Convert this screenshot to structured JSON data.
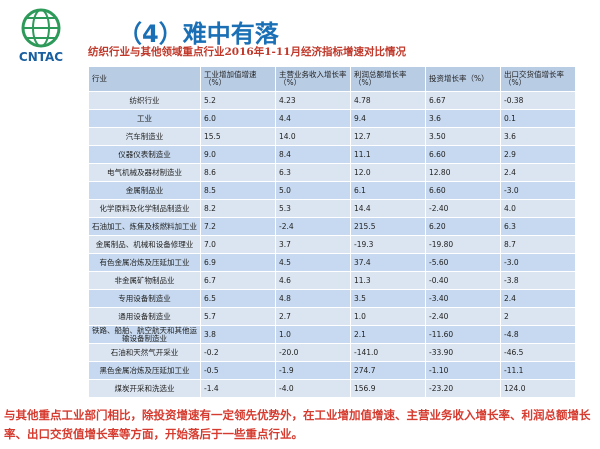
{
  "header": {
    "logo_text": "CNTAC",
    "title": "（4）难中有落"
  },
  "subtitle": "纺织行业与其他领域重点行业2016年1-11月经济指标增速对比情况",
  "table": {
    "columns": [
      "行业",
      "工业增加值增速（%）",
      "主营业务收入增长率（%）",
      "利润总额增长率（%）",
      "投资增长率（%）",
      "出口交货值增长率（%）"
    ],
    "rows": [
      [
        "纺织行业",
        "5.2",
        "4.23",
        "4.78",
        "6.67",
        "-0.38"
      ],
      [
        "工业",
        "6.0",
        "4.4",
        "9.4",
        "3.6",
        "0.1"
      ],
      [
        "汽车制造业",
        "15.5",
        "14.0",
        "12.7",
        "3.50",
        "3.6"
      ],
      [
        "仪器仪表制造业",
        "9.0",
        "8.4",
        "11.1",
        "6.60",
        "2.9"
      ],
      [
        "电气机械及器材制造业",
        "8.6",
        "6.3",
        "12.0",
        "12.80",
        "2.4"
      ],
      [
        "金属制品业",
        "8.5",
        "5.0",
        "6.1",
        "6.60",
        "-3.0"
      ],
      [
        "化学原料及化学制品制造业",
        "8.2",
        "5.3",
        "14.4",
        "-2.40",
        "4.0"
      ],
      [
        "石油加工、炼焦及核燃料加工业",
        "7.2",
        "-2.4",
        "215.5",
        "6.20",
        "6.3"
      ],
      [
        "金属制品、机械和设备修理业",
        "7.0",
        "3.7",
        "-19.3",
        "-19.80",
        "8.7"
      ],
      [
        "有色金属冶炼及压延加工业",
        "6.9",
        "4.5",
        "37.4",
        "-5.60",
        "-3.0"
      ],
      [
        "非金属矿物制品业",
        "6.7",
        "4.6",
        "11.3",
        "-0.40",
        "-3.8"
      ],
      [
        "专用设备制造业",
        "6.5",
        "4.8",
        "3.5",
        "-3.40",
        "2.4"
      ],
      [
        "通用设备制造业",
        "5.7",
        "2.7",
        "1.0",
        "-2.40",
        "2"
      ],
      [
        "铁路、船舶、航空航天和其他运输设备制造业",
        "3.8",
        "1.0",
        "2.1",
        "-11.60",
        "-4.8"
      ],
      [
        "石油和天然气开采业",
        "-0.2",
        "-20.0",
        "-141.0",
        "-33.90",
        "-46.5"
      ],
      [
        "黑色金属冶炼及压延加工业",
        "-0.5",
        "-1.9",
        "274.7",
        "-1.10",
        "-11.1"
      ],
      [
        "煤炭开采和洗选业",
        "-1.4",
        "-4.0",
        "156.9",
        "-23.20",
        "124.0"
      ]
    ]
  },
  "footer": "与其他重点工业部门相比，除投资增速有一定领先优势外，在工业增加值增速、主营业务收入增长率、利润总额增长率、出口交货值增长率等方面，开始落后于一些重点行业。"
}
